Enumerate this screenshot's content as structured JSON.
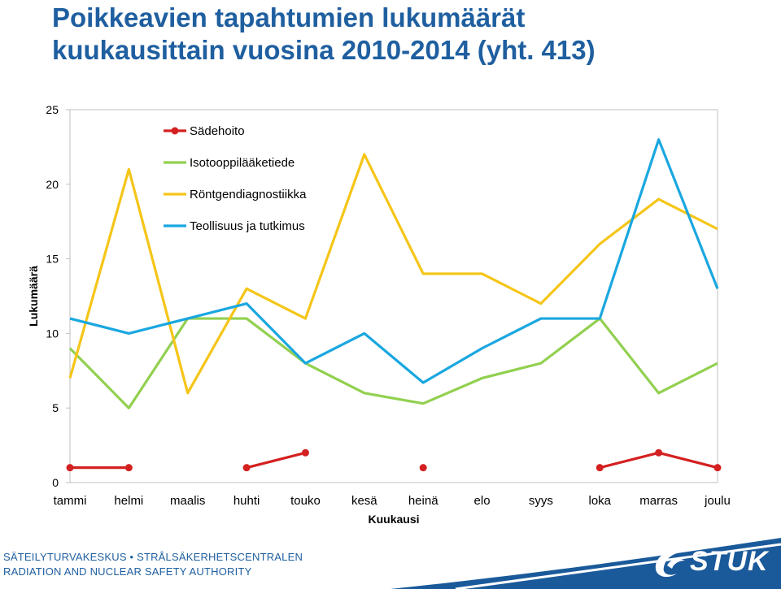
{
  "title_line1": "Poikkeavien tapahtumien lukumäärät",
  "title_line2": "kuukausittain vuosina 2010-2014 (yht. 413)",
  "colors": {
    "title": "#1f5fa0",
    "footer_text": "#1f5fa0",
    "footer_band": "#1a5a9a"
  },
  "chart_data": {
    "type": "line",
    "title": "Poikkeavien tapahtumien lukumäärät kuukausittain vuosina 2010-2014 (yht. 413)",
    "xlabel": "Kuukausi",
    "ylabel": "Lukumäärä",
    "ylim": [
      0,
      25
    ],
    "yticks": [
      0,
      5,
      10,
      15,
      20,
      25
    ],
    "categories": [
      "tammi",
      "helmi",
      "maalis",
      "huhti",
      "touko",
      "kesä",
      "heinä",
      "elo",
      "syys",
      "loka",
      "marras",
      "joulu"
    ],
    "grid": false,
    "legend_position": "top-left",
    "series": [
      {
        "name": "Sädehoito",
        "color": "#d42020",
        "markers": true,
        "values": [
          1,
          1,
          null,
          1,
          2,
          null,
          1,
          null,
          null,
          1,
          2,
          1
        ]
      },
      {
        "name": "Isotooppilääketiede",
        "color": "#92d050",
        "markers": false,
        "values": [
          9,
          5,
          11,
          11,
          8,
          6,
          5.3,
          7,
          8,
          11,
          6,
          8
        ]
      },
      {
        "name": "Röntgendiagnostiikka",
        "color": "#f5c518",
        "markers": false,
        "values": [
          7,
          21,
          6,
          13,
          11,
          22,
          14,
          14,
          12,
          16,
          19,
          17
        ]
      },
      {
        "name": "Teollisuus ja tutkimus",
        "color": "#1aa7e0",
        "markers": false,
        "values": [
          11,
          10,
          11,
          12,
          8,
          10,
          6.7,
          9,
          11,
          11,
          23,
          13
        ]
      }
    ]
  },
  "footer": {
    "line1": "SÄTEILYTURVAKESKUS • STRÅLSÄKERHETSCENTRALEN",
    "line2": "RADIATION AND NUCLEAR SAFETY AUTHORITY",
    "logo_text": "STUK"
  }
}
